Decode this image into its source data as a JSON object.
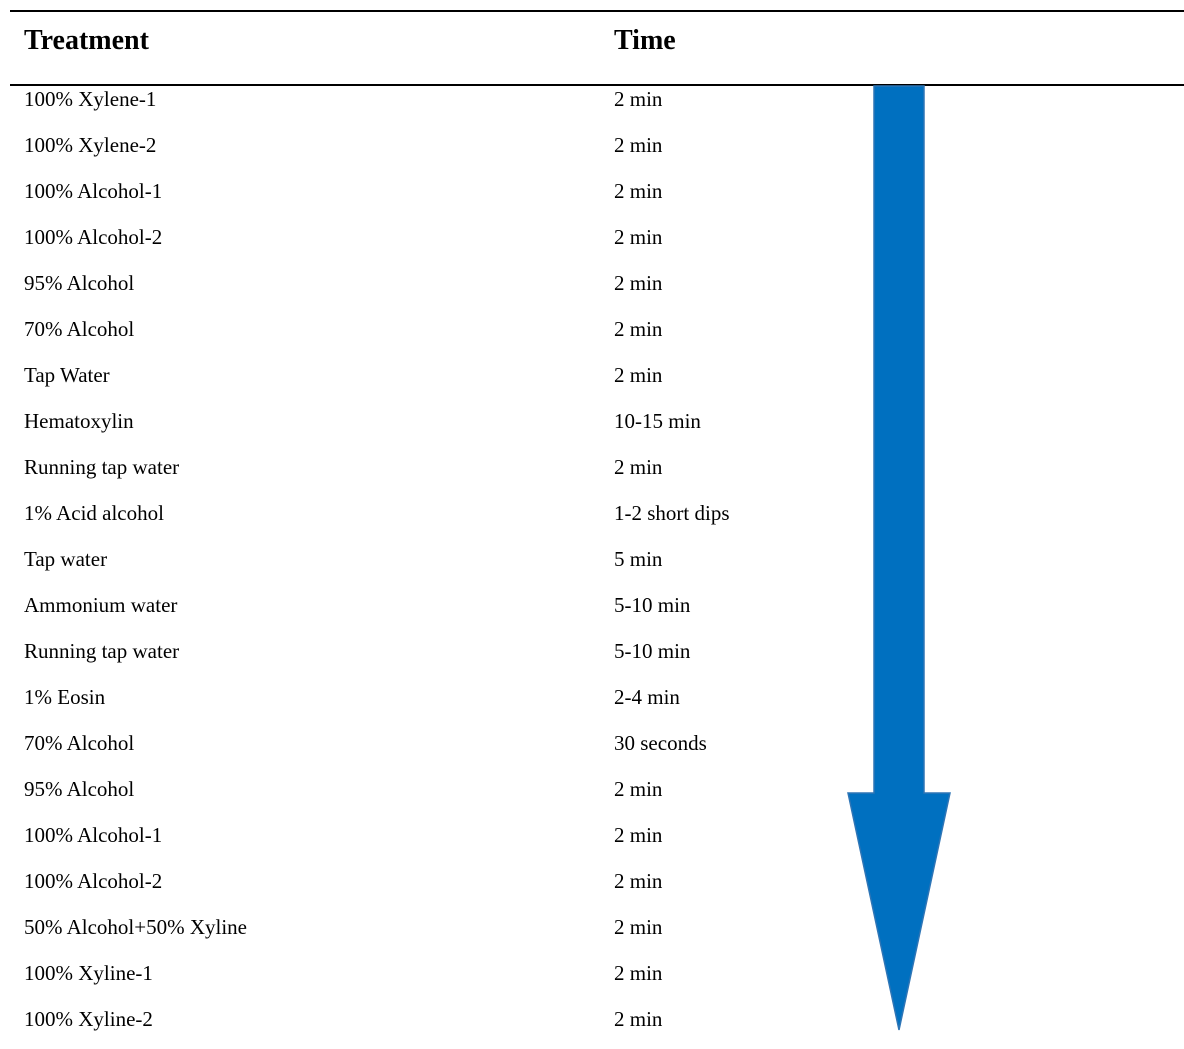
{
  "table": {
    "headers": {
      "treatment": "Treatment",
      "time": "Time"
    },
    "rows": [
      {
        "treatment": "100% Xylene-1",
        "time": "2 min"
      },
      {
        "treatment": "100% Xylene-2",
        "time": "2 min"
      },
      {
        "treatment": "100% Alcohol-1",
        "time": "2 min"
      },
      {
        "treatment": "100% Alcohol-2",
        "time": "2 min"
      },
      {
        "treatment": "95% Alcohol",
        "time": "2 min"
      },
      {
        "treatment": "70% Alcohol",
        "time": "2 min"
      },
      {
        "treatment": "Tap Water",
        "time": "2 min"
      },
      {
        "treatment": "Hematoxylin",
        "time": "10-15 min"
      },
      {
        "treatment": "Running tap water",
        "time": "2 min"
      },
      {
        "treatment": "1% Acid alcohol",
        "time": "1-2 short dips"
      },
      {
        "treatment": "Tap water",
        "time": "5 min"
      },
      {
        "treatment": "Ammonium water",
        "time": "5-10 min"
      },
      {
        "treatment": "Running tap water",
        "time": "5-10 min"
      },
      {
        "treatment": "1% Eosin",
        "time": "2-4 min"
      },
      {
        "treatment": "70% Alcohol",
        "time": "30 seconds"
      },
      {
        "treatment": "95% Alcohol",
        "time": "2 min"
      },
      {
        "treatment": "100% Alcohol-1",
        "time": "2 min"
      },
      {
        "treatment": "100% Alcohol-2",
        "time": "2 min"
      },
      {
        "treatment": "50% Alcohol+50% Xyline",
        "time": "2 min"
      },
      {
        "treatment": "100% Xyline-1",
        "time": "2 min"
      },
      {
        "treatment": "100% Xyline-2",
        "time": "2 min"
      }
    ]
  },
  "arrow": {
    "icon": "down-arrow-icon",
    "color": "#0070c0",
    "stroke_color": "#2e75b6"
  }
}
